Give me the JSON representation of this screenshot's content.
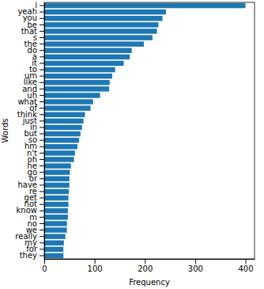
{
  "chart_data": {
    "type": "bar",
    "orientation": "horizontal",
    "x_label": "Frequency",
    "y_label": "Words",
    "categories": [
      "i",
      "yeah",
      "you",
      "be",
      "that",
      "s",
      "the",
      "do",
      "a",
      "it",
      "to",
      "um",
      "like",
      "and",
      "uh",
      "what",
      "of",
      "think",
      "just",
      "in",
      "but",
      "so",
      "hm",
      "n't",
      "oh",
      "he",
      "go",
      "or",
      "have",
      "re",
      "get",
      "not",
      "know",
      "m",
      "no",
      "we",
      "really",
      "my",
      "for",
      "they"
    ],
    "values": [
      400,
      242,
      235,
      227,
      224,
      215,
      198,
      174,
      170,
      158,
      141,
      135,
      130,
      129,
      111,
      97,
      92,
      81,
      78,
      75,
      72,
      69,
      66,
      61,
      59,
      53,
      51,
      50,
      50,
      49,
      48,
      48,
      47,
      47,
      45,
      45,
      42,
      39,
      38,
      38
    ],
    "color": "#1f77b4",
    "xlim": [
      0,
      418
    ],
    "xticks": [
      0,
      100,
      200,
      300,
      400
    ],
    "grid": false
  }
}
